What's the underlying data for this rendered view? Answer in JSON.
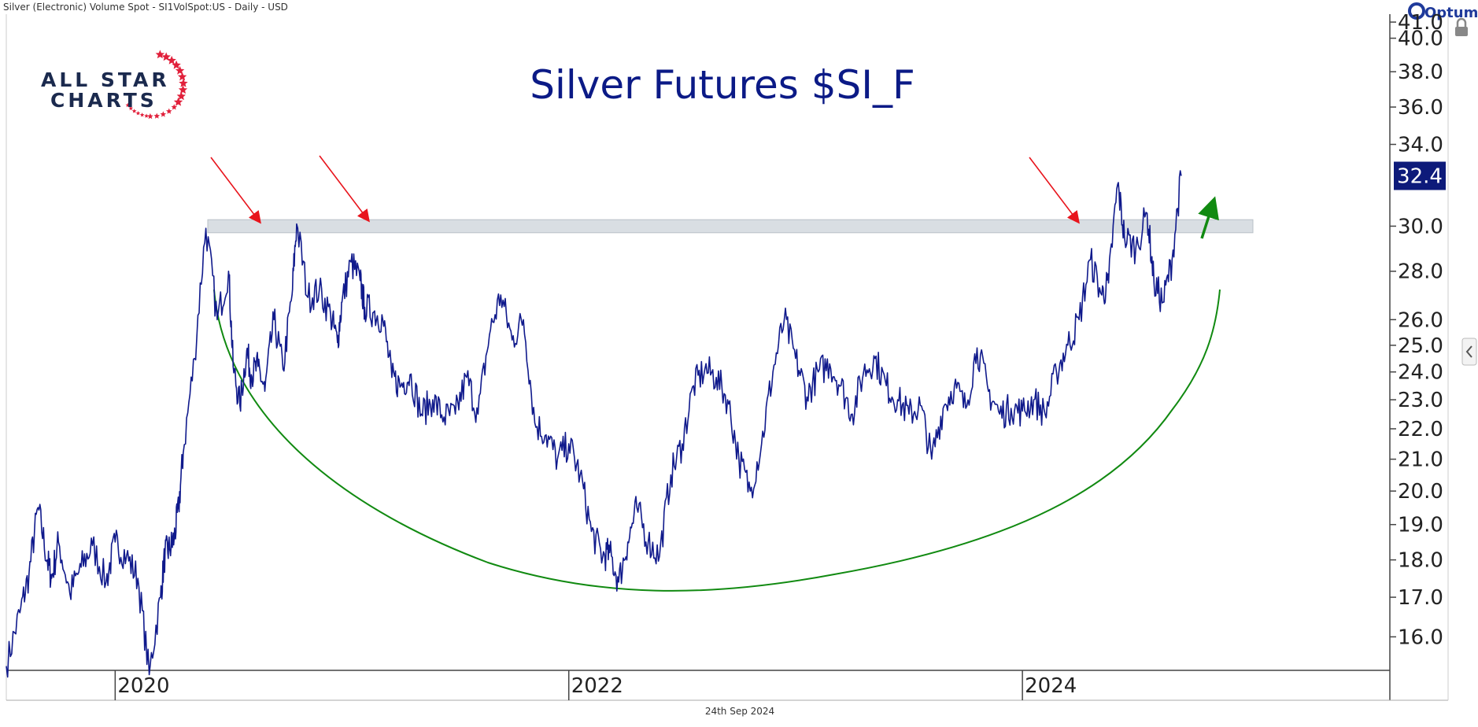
{
  "header": {
    "instrument_line": "Silver (Electronic) Volume Spot - SI1VolSpot:US - Daily - USD",
    "brand": "Optuma"
  },
  "logo": {
    "line1": "ALL STAR",
    "line2": "CHARTS"
  },
  "footer": {
    "date": "24th Sep 2024"
  },
  "colors": {
    "line": "#101a8c",
    "title": "#0b1a86",
    "resistance_band": "#d9dee3",
    "arrow_red": "#e8141c",
    "arc_green": "#118a11",
    "last_price_bg": "#0d1a7a",
    "star_red": "#e1203b"
  },
  "chart_data": {
    "type": "line",
    "title": "Silver Futures $SI_F",
    "xlabel": "",
    "ylabel": "",
    "y_scale": "log",
    "ylim": [
      15.2,
      41.5
    ],
    "xlim": [
      2019.52,
      2025.62
    ],
    "y_ticks": [
      "16.0",
      "17.0",
      "18.0",
      "19.0",
      "20.0",
      "21.0",
      "22.0",
      "23.0",
      "24.0",
      "25.0",
      "26.0",
      "28.0",
      "30.0",
      "34.0",
      "36.0",
      "38.0",
      "40.0",
      "41.0"
    ],
    "x_ticks": [
      "2020",
      "2022",
      "2024"
    ],
    "last_price": "32.4",
    "resistance_band": [
      29.7,
      30.3
    ],
    "legend": "none",
    "grid": false,
    "series": [
      {
        "x": [
          2019.52,
          2019.58,
          2019.62,
          2019.66,
          2019.7,
          2019.72,
          2019.75,
          2019.8,
          2019.85,
          2019.9,
          2019.96,
          2020.0,
          2020.05,
          2020.1,
          2020.15,
          2020.2,
          2020.22,
          2020.24,
          2020.26,
          2020.28,
          2020.3,
          2020.35,
          2020.4,
          2020.45,
          2020.5,
          2020.52,
          2020.55,
          2020.58,
          2020.6,
          2020.63,
          2020.66,
          2020.7,
          2020.74,
          2020.78,
          2020.8,
          2020.85,
          2020.9,
          2020.95,
          2020.98,
          2021.0,
          2021.04,
          2021.08,
          2021.1,
          2021.14,
          2021.18,
          2021.22,
          2021.26,
          2021.3,
          2021.35,
          2021.4,
          2021.45,
          2021.5,
          2021.55,
          2021.6,
          2021.65,
          2021.7,
          2021.75,
          2021.8,
          2021.85,
          2021.9,
          2021.95,
          2022.0,
          2022.05,
          2022.1,
          2022.15,
          2022.18,
          2022.22,
          2022.26,
          2022.3,
          2022.35,
          2022.4,
          2022.45,
          2022.5,
          2022.55,
          2022.6,
          2022.65,
          2022.7,
          2022.75,
          2022.8,
          2022.85,
          2022.9,
          2022.95,
          2023.0,
          2023.05,
          2023.1,
          2023.15,
          2023.2,
          2023.25,
          2023.3,
          2023.35,
          2023.4,
          2023.45,
          2023.5,
          2023.55,
          2023.6,
          2023.65,
          2023.7,
          2023.75,
          2023.8,
          2023.85,
          2023.9,
          2023.95,
          2024.0,
          2024.05,
          2024.1,
          2024.15,
          2024.2,
          2024.25,
          2024.3,
          2024.35,
          2024.38,
          2024.42,
          2024.45,
          2024.5,
          2024.55,
          2024.58,
          2024.62,
          2024.66,
          2024.7
        ],
        "y": [
          15.3,
          16.6,
          17.6,
          19.5,
          18.0,
          17.5,
          18.5,
          17.1,
          17.8,
          18.4,
          17.4,
          18.5,
          18.1,
          17.5,
          15.1,
          17.0,
          18.2,
          18.3,
          18.6,
          19.5,
          21.2,
          24.5,
          29.9,
          26.0,
          28.0,
          24.2,
          22.8,
          24.8,
          23.9,
          24.2,
          23.3,
          26.0,
          24.1,
          27.0,
          30.1,
          26.9,
          27.2,
          26.2,
          25.1,
          26.7,
          28.4,
          27.6,
          26.5,
          26.3,
          26.0,
          23.8,
          23.5,
          23.9,
          22.5,
          23.0,
          22.4,
          22.5,
          23.8,
          22.5,
          25.4,
          27.0,
          25.2,
          26.0,
          22.2,
          21.8,
          21.0,
          21.5,
          20.5,
          18.8,
          18.1,
          18.2,
          17.4,
          18.5,
          19.5,
          18.5,
          18.1,
          20.5,
          21.5,
          23.5,
          24.1,
          23.8,
          23.0,
          21.0,
          20.0,
          21.5,
          24.0,
          26.0,
          24.5,
          23.1,
          24.0,
          24.3,
          23.5,
          22.5,
          24.0,
          24.5,
          23.5,
          23.0,
          22.5,
          22.8,
          21.0,
          22.7,
          23.5,
          22.7,
          24.9,
          23.3,
          22.5,
          22.7,
          22.6,
          23.0,
          22.5,
          24.0,
          25.0,
          26.0,
          28.5,
          27.0,
          27.5,
          32.0,
          29.5,
          29.0,
          30.6,
          27.5,
          26.7,
          28.5,
          32.4
        ]
      }
    ]
  }
}
